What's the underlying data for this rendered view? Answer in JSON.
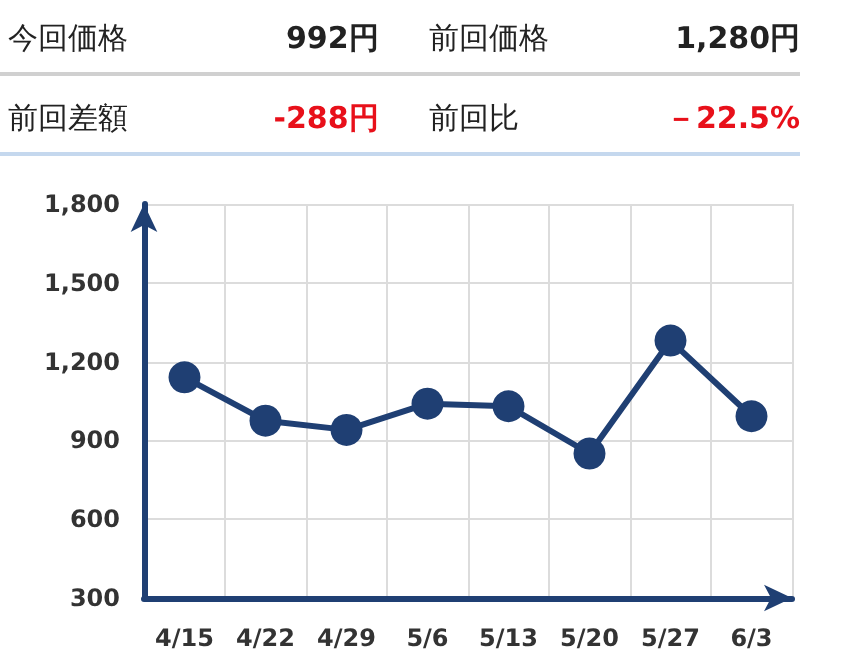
{
  "chart_data": {
    "type": "line",
    "annotations": [
      "今回価格",
      "992円",
      "前回価格",
      "1,280円",
      "前回差額",
      "-288円",
      "前回比",
      "－22.5%"
    ],
    "categories": [
      "4/15",
      "4/22",
      "4/29",
      "5/6",
      "5/13",
      "5/20",
      "5/27",
      "6/3"
    ],
    "series": [
      {
        "color": "#1f3f73",
        "values": [
          1140,
          975,
          940,
          1040,
          1030,
          850,
          1280,
          992
        ]
      }
    ],
    "ylim": [
      300,
      1800
    ],
    "yticks": [
      300,
      600,
      900,
      {
        "value": 1200,
        "label": "1,200"
      },
      {
        "value": 1500,
        "label": "1,500"
      },
      {
        "value": 1800,
        "label": "1,800"
      }
    ],
    "grid": true,
    "marker": "circle",
    "line_style": "solid"
  }
}
